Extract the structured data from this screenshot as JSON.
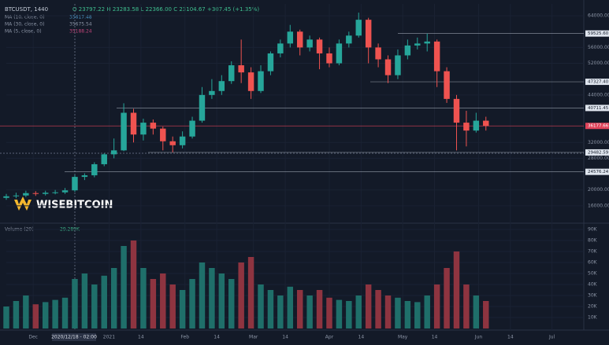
{
  "header": {
    "symbol": "BTCUSDT, 1440",
    "quote": "O 23797.22 H 23283.58 L 22366.00 C 23104.67 +307.45 (+1.35%)",
    "indicators": [
      {
        "name": "MA (10, close, 0)",
        "value": "35617.48"
      },
      {
        "name": "MA (30, close, 0)",
        "value": "35675.54"
      },
      {
        "name": "MA (5, close, 0)",
        "value": "35188.24"
      }
    ],
    "volume_label": "Volume (20)",
    "volume_value": "29.289K",
    "crosshair_label": "2020/12/18 - 02:00",
    "logo": "WISEBITCOIN"
  },
  "chart_data": [
    {
      "type": "candlestick",
      "x": [
        0,
        4,
        8,
        12,
        16,
        20,
        24,
        28,
        32,
        36,
        40,
        44,
        48,
        52,
        56,
        60,
        64,
        68,
        72,
        76,
        80,
        84,
        88,
        92,
        96,
        100,
        104,
        108,
        112,
        116,
        120,
        124,
        128,
        132,
        136,
        140,
        144,
        148,
        152,
        156,
        160,
        164,
        168,
        172,
        176,
        180,
        184,
        188,
        192,
        196
      ],
      "open": [
        18000,
        18400,
        18600,
        19200,
        19000,
        19300,
        19400,
        19900,
        23300,
        23700,
        26500,
        29000,
        30000,
        39500,
        34000,
        37000,
        35500,
        32300,
        31300,
        33500,
        37500,
        44000,
        45000,
        47500,
        51500,
        49700,
        45000,
        50000,
        54500,
        57000,
        60000,
        56000,
        58000,
        54500,
        52000,
        57000,
        59000,
        63000,
        56000,
        53000,
        49000,
        54000,
        56500,
        57000,
        57500,
        50000,
        43000,
        37000,
        35000,
        37500
      ],
      "high": [
        19000,
        19300,
        19800,
        19700,
        19800,
        20000,
        20500,
        23800,
        24200,
        27000,
        29300,
        33000,
        41900,
        40500,
        38000,
        37800,
        36000,
        33500,
        34800,
        38500,
        46000,
        48000,
        49000,
        52500,
        58000,
        51000,
        51500,
        55000,
        58000,
        61700,
        60500,
        59000,
        58500,
        56000,
        58000,
        60000,
        64800,
        63500,
        57000,
        54000,
        55500,
        58000,
        58500,
        59500,
        58000,
        51000,
        44000,
        40000,
        39500,
        38500
      ],
      "low": [
        17500,
        17900,
        18200,
        18500,
        18600,
        18900,
        19000,
        19500,
        22500,
        23200,
        26000,
        28000,
        29800,
        32000,
        32500,
        34000,
        30000,
        29500,
        30500,
        33000,
        37000,
        43000,
        44000,
        46800,
        47000,
        43000,
        44500,
        49000,
        53500,
        56000,
        54000,
        55000,
        50500,
        51000,
        51500,
        56000,
        58500,
        52000,
        51000,
        47000,
        48000,
        53000,
        55500,
        55000,
        46000,
        42000,
        30000,
        31000,
        34500,
        35000
      ],
      "close": [
        18400,
        18600,
        19200,
        19000,
        19300,
        19400,
        19900,
        23300,
        23700,
        26500,
        29000,
        30000,
        39500,
        34000,
        37000,
        35500,
        32300,
        31300,
        33500,
        37500,
        44000,
        45000,
        47500,
        51500,
        49700,
        45000,
        50000,
        54500,
        57000,
        60000,
        56000,
        58000,
        54500,
        52000,
        57000,
        59000,
        63000,
        56000,
        53000,
        49000,
        54000,
        56500,
        57000,
        57500,
        50000,
        43000,
        37000,
        35000,
        37500,
        36200
      ],
      "up_color": "#26a69a",
      "down_color": "#ef5350",
      "xlim": [
        0,
        236
      ],
      "xticks": [
        {
          "value": 11,
          "label": "Dec"
        },
        {
          "value": 42,
          "label": "2021"
        },
        {
          "value": 55,
          "label": "14"
        },
        {
          "value": 73,
          "label": "Feb"
        },
        {
          "value": 86,
          "label": "14"
        },
        {
          "value": 101,
          "label": "Mar"
        },
        {
          "value": 114,
          "label": "14"
        },
        {
          "value": 132,
          "label": "Apr"
        },
        {
          "value": 145,
          "label": "14"
        },
        {
          "value": 162,
          "label": "May"
        },
        {
          "value": 175,
          "label": "14"
        },
        {
          "value": 193,
          "label": "Jun"
        },
        {
          "value": 206,
          "label": "14"
        },
        {
          "value": 223,
          "label": "Jul"
        }
      ],
      "ylim": [
        11800,
        67000
      ],
      "yticks": [
        {
          "value": 16000,
          "label": "16000.00"
        },
        {
          "value": 20000,
          "label": "20000.00"
        },
        {
          "value": 28000,
          "label": "28000.00"
        },
        {
          "value": 32000,
          "label": "32000.00"
        },
        {
          "value": 44000,
          "label": "44000.00"
        },
        {
          "value": 52000,
          "label": "52000.00"
        },
        {
          "value": 56000,
          "label": "56000.00"
        },
        {
          "value": 64000,
          "label": "64000.00"
        }
      ],
      "levels": [
        {
          "value": 59525.6,
          "label": "59525.60",
          "color": "#c8d0dc"
        },
        {
          "value": 47327.4,
          "label": "47327.40",
          "color": "#c8d0dc"
        },
        {
          "value": 40711.45,
          "label": "40711.45",
          "color": "#c8d0dc"
        },
        {
          "value": 36177.66,
          "label": "36177.66",
          "color": "#e0435a"
        },
        {
          "value": 29482.59,
          "label": "29482.59",
          "color": "#c8d0dc"
        },
        {
          "value": 24576.24,
          "label": "24576.24",
          "color": "#c8d0dc"
        }
      ]
    },
    {
      "type": "bar",
      "values": [
        20000,
        25000,
        30000,
        22000,
        24000,
        26000,
        28000,
        45000,
        50000,
        40000,
        48000,
        55000,
        75000,
        80000,
        55000,
        45000,
        50000,
        40000,
        35000,
        45000,
        60000,
        55000,
        50000,
        45000,
        60000,
        65000,
        40000,
        35000,
        30000,
        38000,
        35000,
        30000,
        35000,
        28000,
        26000,
        25000,
        30000,
        40000,
        35000,
        30000,
        28000,
        25000,
        24000,
        30000,
        40000,
        55000,
        70000,
        40000,
        30000,
        25000
      ],
      "up_color": "#1f6f6a",
      "down_color": "#8e3440",
      "ylim": [
        0,
        95000
      ],
      "yticks": [
        {
          "value": 10000,
          "label": "10K"
        },
        {
          "value": 20000,
          "label": "20K"
        },
        {
          "value": 30000,
          "label": "30K"
        },
        {
          "value": 40000,
          "label": "40K"
        },
        {
          "value": 50000,
          "label": "50K"
        },
        {
          "value": 60000,
          "label": "60K"
        },
        {
          "value": 70000,
          "label": "70K"
        },
        {
          "value": 80000,
          "label": "80K"
        },
        {
          "value": 90000,
          "label": "90K"
        }
      ]
    }
  ]
}
